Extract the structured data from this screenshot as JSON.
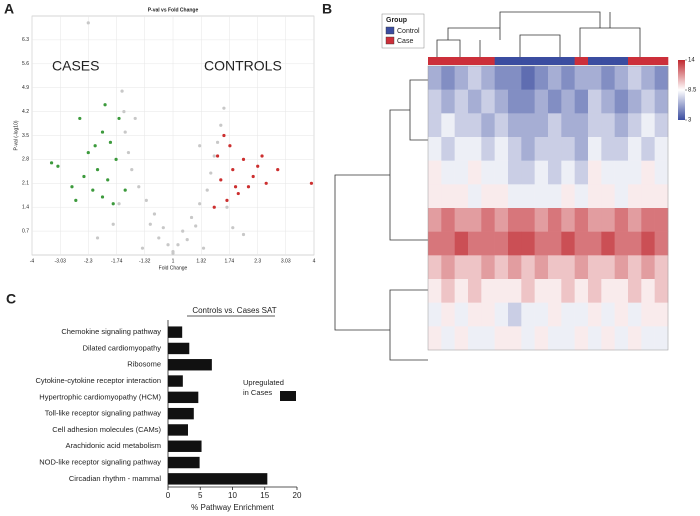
{
  "chart_data": [
    {
      "panel": "A",
      "type": "scatter",
      "title": "P-val vs Fold Change",
      "x_label": "Fold Change",
      "y_label": "P-val (-log10)",
      "annotations": [
        "CASES",
        "CONTROLS"
      ],
      "x_scale": "signed-log2",
      "xlim": [
        -4,
        4
      ],
      "xticks": [
        -4,
        -3.03,
        -2.3,
        -1.74,
        -1.32,
        1,
        1.32,
        1.74,
        2.3,
        3.03,
        4
      ],
      "ylim": [
        0,
        7
      ],
      "yticks": [
        0.7,
        1.4,
        2.1,
        2.8,
        3.5,
        4.2,
        4.9,
        5.6,
        6.3
      ],
      "grid": true,
      "series": [
        {
          "color": "#c8c8c8",
          "x": [
            -1.05,
            1.05,
            -1.1,
            1.1,
            -1.2,
            1.2,
            -1.3,
            1.3,
            -1.4,
            1.4,
            -1.5,
            1.45,
            -1.55,
            1.5,
            -1.6,
            1.55,
            -1.62,
            1.6,
            -1.65,
            1.65,
            -1.0,
            1.0,
            -1.15,
            1.15,
            -1.25,
            1.25,
            -1.8,
            1.8,
            -2.1,
            2.0,
            -1.35,
            1.35,
            -1.7,
            1.7,
            -1.45,
            1.3,
            -2.3
          ],
          "y": [
            0.3,
            0.3,
            0.8,
            0.7,
            1.2,
            1.1,
            1.6,
            1.5,
            2.0,
            1.9,
            2.5,
            2.4,
            3.0,
            2.9,
            3.6,
            3.3,
            4.2,
            3.8,
            4.8,
            4.3,
            0.1,
            0.05,
            0.5,
            0.45,
            0.9,
            0.85,
            0.9,
            0.8,
            0.5,
            0.6,
            0.2,
            0.2,
            1.5,
            1.4,
            4.0,
            3.2,
            6.8
          ]
        },
        {
          "color": "#3c9a3c",
          "x": [
            -1.8,
            -2.0,
            -2.2,
            -1.9,
            -2.1,
            -1.75,
            -2.3,
            -1.85,
            -2.0,
            -1.7,
            -2.4,
            -2.6,
            -1.95,
            -2.15,
            -3.3,
            -3.1,
            -2.7,
            -1.6,
            -2.5
          ],
          "y": [
            1.5,
            1.7,
            1.9,
            2.2,
            2.5,
            2.8,
            3.0,
            3.3,
            3.6,
            4.0,
            2.3,
            1.6,
            4.4,
            3.2,
            2.7,
            2.6,
            2.0,
            1.9,
            4.0
          ]
        },
        {
          "color": "#cc2f2f",
          "x": [
            1.5,
            1.7,
            1.9,
            2.1,
            1.6,
            1.8,
            2.0,
            2.3,
            1.55,
            1.75,
            2.2,
            2.5,
            1.65,
            2.4,
            3.9,
            2.8,
            1.85
          ],
          "y": [
            1.4,
            1.6,
            1.8,
            2.0,
            2.2,
            2.5,
            2.8,
            2.6,
            2.9,
            3.2,
            2.3,
            2.1,
            3.5,
            2.9,
            2.1,
            2.5,
            2.0
          ]
        }
      ]
    },
    {
      "panel": "B",
      "type": "heatmap",
      "legend_title": "Group",
      "groups": [
        {
          "name": "Control",
          "color": "#3b4da0"
        },
        {
          "name": "Case",
          "color": "#cc2f3a"
        }
      ],
      "column_groups": [
        "Case",
        "Case",
        "Case",
        "Case",
        "Case",
        "Control",
        "Control",
        "Control",
        "Control",
        "Control",
        "Control",
        "Case",
        "Control",
        "Control",
        "Control",
        "Case",
        "Case",
        "Case"
      ],
      "zlim": [
        3,
        14
      ],
      "zticks": [
        3,
        8.5,
        14
      ],
      "colors": [
        "#3b4da0",
        "#ffffff",
        "#c0282f"
      ],
      "values": [
        [
          6,
          5,
          6,
          7,
          6,
          5,
          5,
          4,
          5,
          6,
          5,
          6,
          6,
          5,
          6,
          7,
          6,
          5
        ],
        [
          7,
          6,
          7,
          6,
          7,
          6,
          5,
          5,
          6,
          5,
          6,
          5,
          7,
          6,
          5,
          6,
          7,
          6
        ],
        [
          7,
          8,
          7,
          7,
          6,
          7,
          6,
          6,
          6,
          7,
          6,
          6,
          7,
          7,
          6,
          7,
          8,
          7
        ],
        [
          8,
          7,
          8,
          8,
          7,
          8,
          7,
          6,
          7,
          7,
          7,
          6,
          8,
          7,
          7,
          8,
          7,
          8
        ],
        [
          9,
          8,
          8,
          9,
          8,
          8,
          7,
          7,
          8,
          7,
          8,
          7,
          9,
          8,
          8,
          8,
          9,
          8
        ],
        [
          9,
          9,
          9,
          8,
          9,
          9,
          8,
          8,
          8,
          8,
          9,
          8,
          9,
          9,
          8,
          9,
          9,
          9
        ],
        [
          11,
          12,
          11,
          11,
          12,
          11,
          12,
          12,
          11,
          12,
          11,
          12,
          11,
          11,
          12,
          11,
          12,
          12
        ],
        [
          12,
          12,
          13,
          12,
          12,
          12,
          13,
          13,
          12,
          12,
          13,
          12,
          12,
          13,
          12,
          12,
          13,
          12
        ],
        [
          10,
          11,
          10,
          10,
          11,
          10,
          11,
          10,
          11,
          10,
          10,
          11,
          10,
          10,
          11,
          10,
          11,
          10
        ],
        [
          9,
          10,
          9,
          10,
          9,
          9,
          9,
          10,
          9,
          9,
          10,
          9,
          10,
          9,
          9,
          10,
          9,
          10
        ],
        [
          8,
          9,
          8,
          9,
          9,
          8,
          7,
          8,
          8,
          9,
          8,
          8,
          9,
          8,
          9,
          8,
          9,
          9
        ],
        [
          9,
          8,
          9,
          8,
          8,
          9,
          9,
          8,
          9,
          8,
          8,
          9,
          8,
          9,
          8,
          9,
          8,
          8
        ]
      ]
    },
    {
      "panel": "C",
      "type": "barh",
      "title": "Controls vs. Cases SAT",
      "x_label": "% Pathway Enrichment",
      "categories": [
        "Chemokine signaling pathway",
        "Dilated cardiomyopathy",
        "Ribosome",
        "Cytokine-cytokine receptor interaction",
        "Hypertrophic cardiomyopathy (HCM)",
        "Toll-like receptor signaling pathway",
        "Cell adhesion molecules (CAMs)",
        "Arachidonic acid metabolism",
        "NOD-like receptor signaling pathway",
        "Circadian rhythm - mammal"
      ],
      "series": [
        {
          "name": "Upregulated in Cases",
          "color": "#111111",
          "values": [
            2.2,
            3.3,
            6.8,
            2.3,
            4.7,
            4.0,
            3.1,
            5.2,
            4.9,
            15.4
          ]
        }
      ],
      "xlim": [
        0,
        20
      ],
      "xticks": [
        0,
        5,
        10,
        15,
        20
      ]
    }
  ]
}
